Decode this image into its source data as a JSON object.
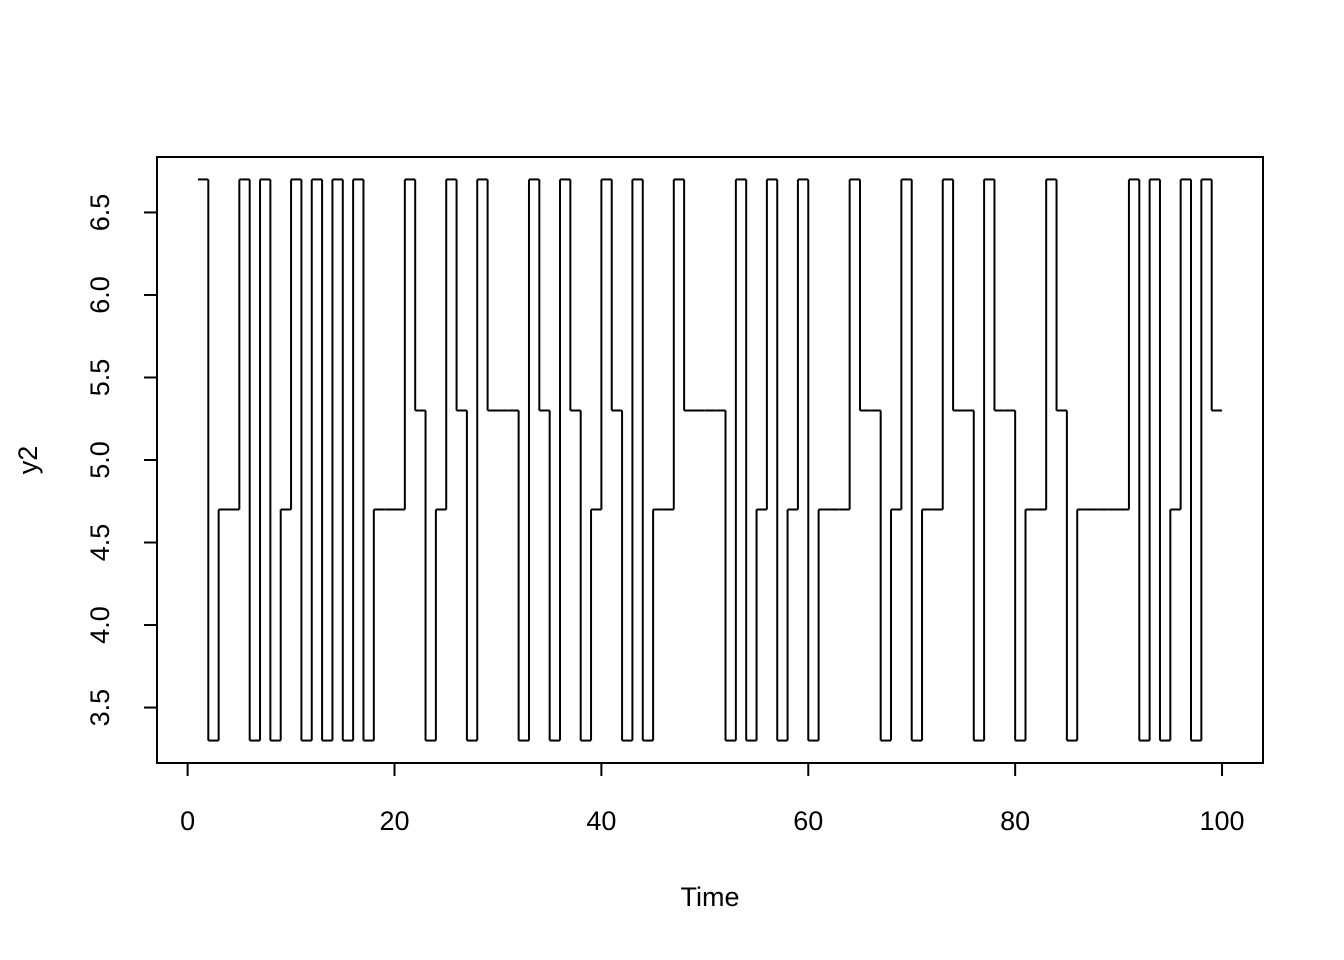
{
  "chart_data": {
    "type": "line",
    "step": true,
    "color": "#000000",
    "x_label": "Time",
    "y_label": "y2",
    "x": [
      1,
      2,
      3,
      4,
      5,
      6,
      7,
      8,
      9,
      10,
      11,
      12,
      13,
      14,
      15,
      16,
      17,
      18,
      19,
      20,
      21,
      22,
      23,
      24,
      25,
      26,
      27,
      28,
      29,
      30,
      31,
      32,
      33,
      34,
      35,
      36,
      37,
      38,
      39,
      40,
      41,
      42,
      43,
      44,
      45,
      46,
      47,
      48,
      49,
      50,
      51,
      52,
      53,
      54,
      55,
      56,
      57,
      58,
      59,
      60,
      61,
      62,
      63,
      64,
      65,
      66,
      67,
      68,
      69,
      70,
      71,
      72,
      73,
      74,
      75,
      76,
      77,
      78,
      79,
      80,
      81,
      82,
      83,
      84,
      85,
      86,
      87,
      88,
      89,
      90,
      91,
      92,
      93,
      94,
      95,
      96,
      97,
      98,
      99,
      100
    ],
    "values": [
      6.7,
      3.3,
      4.7,
      4.7,
      6.7,
      3.3,
      6.7,
      3.3,
      4.7,
      6.7,
      3.3,
      6.7,
      3.3,
      6.7,
      3.3,
      6.7,
      3.3,
      4.7,
      4.7,
      4.7,
      6.7,
      5.3,
      3.3,
      4.7,
      6.7,
      5.3,
      3.3,
      6.7,
      5.3,
      5.3,
      5.3,
      3.3,
      6.7,
      5.3,
      3.3,
      6.7,
      5.3,
      3.3,
      4.7,
      6.7,
      5.3,
      3.3,
      6.7,
      3.3,
      4.7,
      4.7,
      6.7,
      5.3,
      5.3,
      5.3,
      5.3,
      3.3,
      6.7,
      3.3,
      4.7,
      6.7,
      3.3,
      4.7,
      6.7,
      3.3,
      4.7,
      4.7,
      4.7,
      6.7,
      5.3,
      5.3,
      3.3,
      4.7,
      6.7,
      3.3,
      4.7,
      4.7,
      6.7,
      5.3,
      5.3,
      3.3,
      6.7,
      5.3,
      5.3,
      3.3,
      4.7,
      4.7,
      6.7,
      5.3,
      3.3,
      4.7,
      4.7,
      4.7,
      4.7,
      4.7,
      6.7,
      3.3,
      6.7,
      3.3,
      4.7,
      6.7,
      3.3,
      6.7,
      5.3,
      5.3
    ],
    "xlim": [
      -2.96,
      103.96
    ],
    "ylim": [
      3.164,
      6.836
    ],
    "xticks": [
      0,
      20,
      40,
      60,
      80,
      100
    ],
    "yticks": [
      3.5,
      {
        "value": 4,
        "label": "4.0"
      },
      4.5,
      {
        "value": 5,
        "label": "5.0"
      },
      5.5,
      {
        "value": 6,
        "label": "6.0"
      },
      6.5
    ]
  }
}
